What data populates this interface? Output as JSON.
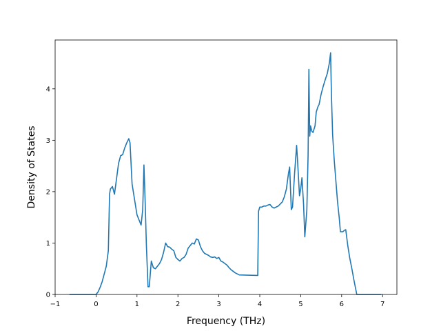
{
  "chart_data": {
    "type": "line",
    "title": "",
    "xlabel": "Frequency (THz)",
    "ylabel": "Density of States",
    "xlim": [
      -1.0,
      7.35
    ],
    "ylim": [
      0,
      4.95
    ],
    "xticks": [
      -1,
      0,
      1,
      2,
      3,
      4,
      5,
      6,
      7
    ],
    "yticks": [
      0,
      1,
      2,
      3,
      4
    ],
    "grid": false,
    "legend": "none",
    "line_color": "#1f77b4",
    "series": [
      {
        "x": [
          -0.65,
          0.0,
          0.05,
          0.1,
          0.15,
          0.2,
          0.25,
          0.3,
          0.33,
          0.35,
          0.4,
          0.45,
          0.5,
          0.55,
          0.6,
          0.65,
          0.7,
          0.75,
          0.8,
          0.83,
          0.88,
          0.95,
          1.0,
          1.05,
          1.1,
          1.14,
          1.17,
          1.2,
          1.23,
          1.27,
          1.3,
          1.35,
          1.4,
          1.45,
          1.5,
          1.55,
          1.6,
          1.65,
          1.7,
          1.75,
          1.8,
          1.85,
          1.9,
          1.95,
          2.0,
          2.05,
          2.1,
          2.15,
          2.2,
          2.25,
          2.3,
          2.35,
          2.4,
          2.45,
          2.5,
          2.55,
          2.6,
          2.65,
          2.7,
          2.75,
          2.8,
          2.85,
          2.9,
          2.95,
          3.0,
          3.05,
          3.1,
          3.15,
          3.2,
          3.25,
          3.3,
          3.35,
          3.4,
          3.5,
          3.95,
          3.97,
          4.0,
          4.05,
          4.1,
          4.15,
          4.2,
          4.25,
          4.3,
          4.35,
          4.4,
          4.45,
          4.5,
          4.55,
          4.6,
          4.65,
          4.7,
          4.73,
          4.77,
          4.8,
          4.85,
          4.9,
          4.93,
          4.97,
          5.0,
          5.03,
          5.07,
          5.1,
          5.15,
          5.18,
          5.2,
          5.22,
          5.24,
          5.27,
          5.3,
          5.35,
          5.38,
          5.42,
          5.45,
          5.5,
          5.55,
          5.6,
          5.65,
          5.7,
          5.73,
          5.75,
          5.78,
          5.82,
          5.86,
          5.9,
          5.94,
          5.97,
          6.0,
          6.03,
          6.07,
          6.1,
          6.15,
          6.2,
          6.25,
          6.3,
          6.37,
          6.97
        ],
        "y": [
          0.0,
          0.0,
          0.05,
          0.14,
          0.25,
          0.4,
          0.55,
          0.85,
          1.95,
          2.05,
          2.1,
          1.95,
          2.25,
          2.55,
          2.7,
          2.72,
          2.85,
          2.95,
          3.03,
          2.95,
          2.15,
          1.8,
          1.55,
          1.45,
          1.35,
          1.65,
          2.52,
          1.8,
          0.95,
          0.15,
          0.15,
          0.65,
          0.52,
          0.5,
          0.55,
          0.6,
          0.68,
          0.82,
          1.0,
          0.93,
          0.92,
          0.88,
          0.85,
          0.72,
          0.68,
          0.65,
          0.7,
          0.72,
          0.78,
          0.9,
          0.95,
          1.0,
          0.98,
          1.08,
          1.06,
          0.93,
          0.85,
          0.8,
          0.78,
          0.76,
          0.73,
          0.72,
          0.73,
          0.7,
          0.72,
          0.65,
          0.63,
          0.6,
          0.57,
          0.52,
          0.48,
          0.45,
          0.42,
          0.38,
          0.37,
          1.62,
          1.7,
          1.7,
          1.72,
          1.72,
          1.74,
          1.75,
          1.7,
          1.68,
          1.7,
          1.72,
          1.76,
          1.8,
          1.9,
          2.05,
          2.35,
          2.48,
          1.65,
          1.7,
          2.35,
          2.9,
          2.5,
          1.92,
          2.05,
          2.27,
          1.75,
          1.12,
          1.65,
          2.7,
          4.38,
          3.08,
          3.28,
          3.18,
          3.15,
          3.28,
          3.55,
          3.65,
          3.7,
          3.9,
          4.05,
          4.18,
          4.3,
          4.5,
          4.7,
          3.9,
          3.1,
          2.6,
          2.2,
          1.8,
          1.5,
          1.22,
          1.22,
          1.22,
          1.25,
          1.26,
          0.95,
          0.7,
          0.5,
          0.28,
          0.0,
          0.0
        ]
      }
    ]
  }
}
